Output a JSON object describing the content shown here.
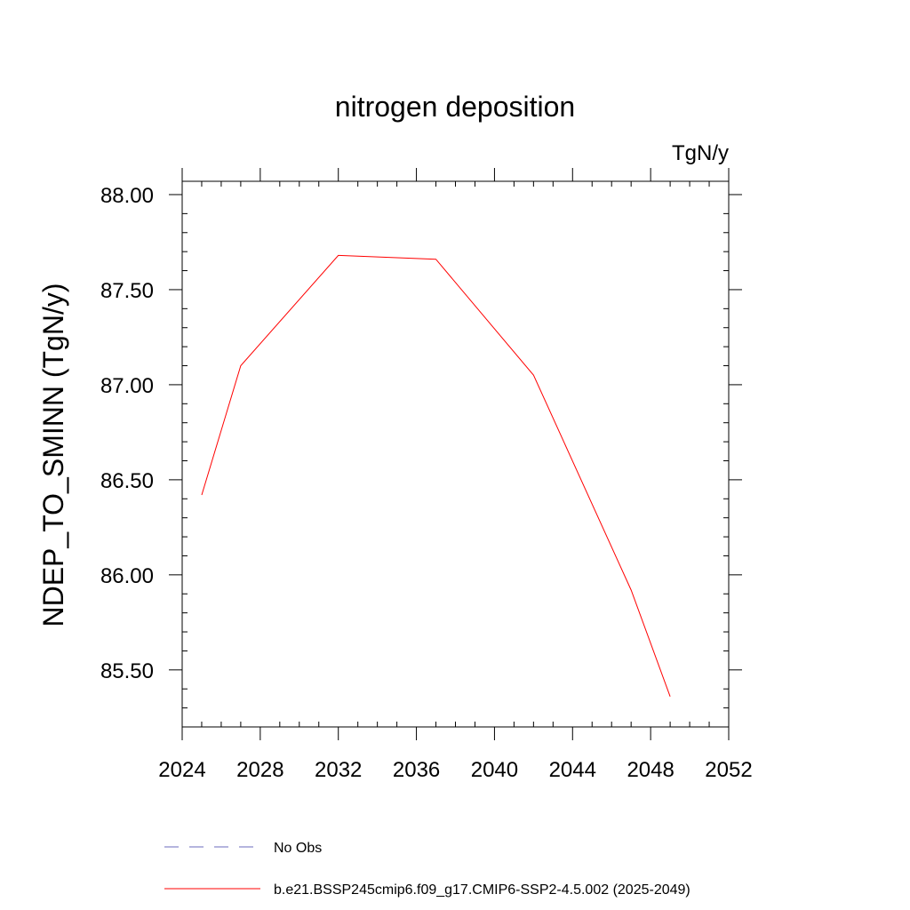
{
  "chart_data": {
    "type": "line",
    "title": "nitrogen deposition",
    "units_label": "TgN/y",
    "xlabel": "",
    "ylabel": "NDEP_TO_SMINN  (TgN/y)",
    "xlim": [
      2024,
      2052
    ],
    "ylim": [
      85.2,
      88.07
    ],
    "x_ticks": [
      2024,
      2028,
      2032,
      2036,
      2040,
      2044,
      2048,
      2052
    ],
    "x_tick_labels": [
      "2024",
      "2028",
      "2032",
      "2036",
      "2040",
      "2044",
      "2048",
      "2052"
    ],
    "y_ticks": [
      85.5,
      86.0,
      86.5,
      87.0,
      87.5,
      88.0
    ],
    "y_tick_labels": [
      "85.50",
      "86.00",
      "86.50",
      "87.00",
      "87.50",
      "88.00"
    ],
    "x_minor_step": 1,
    "y_minor_step": 0.1,
    "grid": false,
    "legend_position": "bottom",
    "series": [
      {
        "name": "b.e21.BSSP245cmip6.f09_g17.CMIP6-SSP2-4.5.002 (2025-2049)",
        "color": "#ff0000",
        "style": "solid",
        "x": [
          2025,
          2027,
          2032,
          2037,
          2042,
          2047,
          2049
        ],
        "y": [
          86.42,
          87.1,
          87.68,
          87.66,
          87.05,
          85.92,
          85.36
        ]
      }
    ],
    "legend": [
      {
        "label": "No Obs",
        "color": "#6b6bbd",
        "style": "dashed"
      },
      {
        "label": "b.e21.BSSP245cmip6.f09_g17.CMIP6-SSP2-4.5.002 (2025-2049)",
        "color": "#ff0000",
        "style": "solid"
      }
    ]
  }
}
